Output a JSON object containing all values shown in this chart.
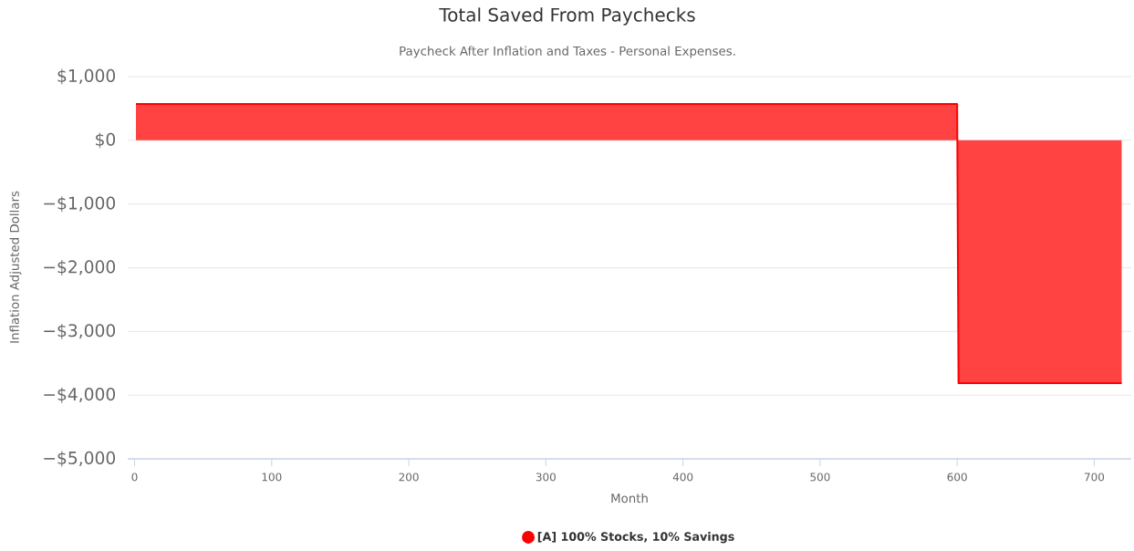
{
  "chart_data": {
    "type": "area",
    "title": "Total Saved From Paychecks",
    "subtitle": "Paycheck After Inflation and Taxes - Personal Expenses.",
    "xlabel": "Month",
    "ylabel": "Inflation Adjusted Dollars",
    "series": [
      {
        "name": "[A] 100% Stocks, 10% Savings",
        "color": "#ff0000",
        "x": [
          1,
          600,
          601,
          720
        ],
        "values": [
          570,
          570,
          -3810,
          -3810
        ]
      }
    ],
    "xlim": [
      -5,
      727
    ],
    "ylim": [
      -5000,
      1000
    ],
    "xticks": [
      0,
      100,
      200,
      300,
      400,
      500,
      600,
      700
    ],
    "yticks": [
      {
        "value": 1000,
        "label": "$1,000"
      },
      {
        "value": 0,
        "label": "$0"
      },
      {
        "value": -1000,
        "label": "−$1,000"
      },
      {
        "value": -2000,
        "label": "−$2,000"
      },
      {
        "value": -3000,
        "label": "−$3,000"
      },
      {
        "value": -4000,
        "label": "−$4,000"
      },
      {
        "value": -5000,
        "label": "−$5,000"
      }
    ],
    "grid": "y",
    "legend": "bottom"
  }
}
